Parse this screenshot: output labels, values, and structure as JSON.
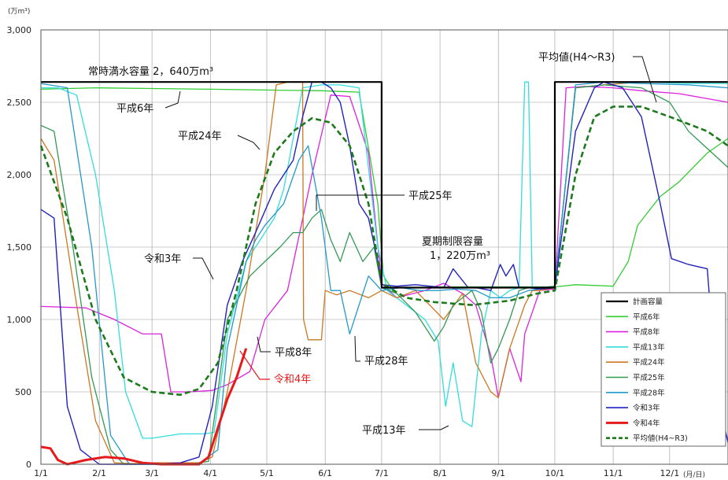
{
  "chart_data": {
    "type": "line",
    "y_unit": "(万m³)",
    "x_unit": "(月/日)",
    "ylim": [
      0,
      3000
    ],
    "y_ticks": [
      {
        "v": 0,
        "label": "0"
      },
      {
        "v": 500,
        "label": "500"
      },
      {
        "v": 1000,
        "label": "1,000"
      },
      {
        "v": 1500,
        "label": "1,500"
      },
      {
        "v": 2000,
        "label": "2,000"
      },
      {
        "v": 2500,
        "label": "2,500"
      },
      {
        "v": 3000,
        "label": "3,000"
      }
    ],
    "x_ticks": [
      {
        "v": 1,
        "label": "1/1"
      },
      {
        "v": 32,
        "label": "2/1"
      },
      {
        "v": 60,
        "label": "3/1"
      },
      {
        "v": 91,
        "label": "4/1"
      },
      {
        "v": 121,
        "label": "5/1"
      },
      {
        "v": 152,
        "label": "6/1"
      },
      {
        "v": 182,
        "label": "7/1"
      },
      {
        "v": 213,
        "label": "8/1"
      },
      {
        "v": 244,
        "label": "9/1"
      },
      {
        "v": 274,
        "label": "10/1"
      },
      {
        "v": 305,
        "label": "11/1"
      },
      {
        "v": 335,
        "label": "12/1"
      }
    ],
    "xlim": [
      1,
      366
    ],
    "grid": true,
    "legend_position": "bottom-right",
    "series": [
      {
        "name": "計画容量",
        "color": "#000000",
        "width": 2.2,
        "dash": "",
        "x": [
          1,
          182,
          182,
          274,
          274,
          366
        ],
        "y": [
          2640,
          2640,
          1220,
          1220,
          2640,
          2640
        ]
      },
      {
        "name": "平成6年",
        "color": "#33cc33",
        "width": 1.3,
        "dash": "",
        "x": [
          1,
          30,
          60,
          91,
          120,
          150,
          170,
          180,
          183,
          187,
          195,
          215,
          240,
          265,
          274,
          285,
          305,
          313,
          318,
          330,
          340,
          355,
          366
        ],
        "y": [
          2590,
          2600,
          2595,
          2590,
          2585,
          2580,
          2570,
          1800,
          1300,
          1220,
          1220,
          1225,
          1225,
          1225,
          1225,
          1240,
          1230,
          1400,
          1650,
          1850,
          1950,
          2150,
          2250
        ]
      },
      {
        "name": "平成8年",
        "color": "#dd22dd",
        "width": 1.3,
        "dash": "",
        "x": [
          1,
          25,
          40,
          55,
          65,
          70,
          80,
          92,
          100,
          112,
          120,
          132,
          145,
          155,
          165,
          175,
          182,
          190,
          205,
          215,
          225,
          232,
          240,
          244,
          250,
          256,
          258,
          262,
          266,
          274,
          280,
          290,
          305,
          320,
          340,
          366
        ],
        "y": [
          1090,
          1080,
          1000,
          900,
          900,
          500,
          500,
          510,
          550,
          640,
          1000,
          1200,
          2000,
          2550,
          2540,
          2150,
          1250,
          1150,
          1200,
          1250,
          1180,
          1100,
          750,
          460,
          800,
          570,
          900,
          1050,
          1200,
          1210,
          2600,
          2610,
          2600,
          2580,
          2560,
          2500
        ]
      },
      {
        "name": "平成13年",
        "color": "#33dddd",
        "width": 1.3,
        "dash": "",
        "x": [
          1,
          10,
          20,
          30,
          40,
          46,
          55,
          60,
          75,
          82,
          88,
          93,
          100,
          110,
          125,
          130,
          140,
          150,
          160,
          170,
          180,
          185,
          195,
          205,
          212,
          216,
          220,
          225,
          230,
          235,
          240,
          245,
          250,
          255,
          258,
          260,
          262,
          264,
          266,
          270,
          274,
          285,
          300,
          320,
          345,
          366
        ],
        "y": [
          2600,
          2600,
          2550,
          2000,
          1200,
          500,
          180,
          180,
          210,
          210,
          210,
          220,
          900,
          1400,
          1700,
          1900,
          2600,
          2620,
          2620,
          2600,
          1500,
          1200,
          1100,
          1000,
          850,
          400,
          700,
          300,
          260,
          900,
          1200,
          1150,
          1200,
          1220,
          2640,
          2640,
          1220,
          1220,
          1220,
          1220,
          1230,
          2600,
          2620,
          2640,
          2630,
          2630
        ]
      },
      {
        "name": "平成24年",
        "color": "#cc7722",
        "width": 1.3,
        "dash": "",
        "x": [
          1,
          8,
          20,
          30,
          40,
          50,
          60,
          75,
          85,
          92,
          100,
          110,
          120,
          126,
          132,
          140,
          140.5,
          143,
          150,
          152,
          158,
          165,
          175,
          182,
          190,
          200,
          215,
          225,
          232,
          240,
          244,
          250,
          258,
          262,
          266,
          270,
          274,
          285,
          300,
          320,
          345,
          366
        ],
        "y": [
          2250,
          2100,
          1100,
          300,
          10,
          5,
          10,
          10,
          10,
          50,
          500,
          1200,
          2000,
          2620,
          2640,
          2640,
          1000,
          860,
          860,
          1200,
          1170,
          1200,
          1150,
          1200,
          1150,
          1200,
          1000,
          1180,
          700,
          500,
          460,
          800,
          1100,
          1200,
          1200,
          1210,
          1220,
          2600,
          2620,
          2640,
          2640,
          2640
        ]
      },
      {
        "name": "平成25年",
        "color": "#339955",
        "width": 1.3,
        "dash": "",
        "x": [
          1,
          8,
          18,
          28,
          38,
          45,
          55,
          65,
          80,
          90,
          95,
          100,
          112,
          120,
          128,
          135,
          140,
          145,
          150,
          155,
          160,
          165,
          172,
          178,
          182,
          190,
          200,
          210,
          215,
          220,
          225,
          230,
          235,
          240,
          244,
          250,
          255,
          260,
          266,
          274,
          285,
          300,
          320,
          335,
          345,
          366
        ],
        "y": [
          2340,
          2300,
          1500,
          600,
          100,
          0,
          0,
          0,
          0,
          20,
          500,
          1000,
          1300,
          1400,
          1500,
          1600,
          1600,
          1700,
          1760,
          1550,
          1400,
          1600,
          1400,
          1500,
          1220,
          1180,
          1050,
          850,
          950,
          1100,
          1150,
          1200,
          1050,
          700,
          800,
          1000,
          1200,
          1220,
          1220,
          1230,
          2600,
          2620,
          2600,
          2500,
          2300,
          2050
        ]
      },
      {
        "name": "平成28年",
        "color": "#2299cc",
        "width": 1.3,
        "dash": "",
        "x": [
          1,
          15,
          28,
          38,
          48,
          58,
          70,
          85,
          95,
          100,
          110,
          115,
          120,
          130,
          138,
          143,
          150,
          155,
          160,
          165,
          170,
          175,
          182,
          192,
          202,
          212,
          222,
          232,
          240,
          250,
          260,
          266,
          274,
          285,
          300,
          320,
          345,
          366
        ],
        "y": [
          2630,
          2600,
          1500,
          200,
          0,
          0,
          0,
          5,
          100,
          800,
          1400,
          1550,
          1650,
          1800,
          2100,
          2200,
          1700,
          1200,
          1200,
          900,
          1100,
          1300,
          1200,
          1220,
          1200,
          1200,
          1210,
          1200,
          1150,
          1150,
          1200,
          1210,
          1220,
          2620,
          2640,
          2630,
          2620,
          2600
        ]
      },
      {
        "name": "令和3年",
        "color": "#2222bb",
        "width": 1.4,
        "dash": "",
        "x": [
          1,
          8,
          15,
          22,
          32,
          60,
          75,
          85,
          92,
          100,
          108,
          115,
          125,
          135,
          140,
          145,
          150,
          155,
          160,
          165,
          170,
          175,
          180,
          182,
          190,
          200,
          215,
          220,
          228,
          232,
          240,
          245,
          248,
          252,
          255,
          260,
          266,
          274,
          285,
          295,
          300,
          310,
          320,
          330,
          336,
          345,
          355,
          360,
          366
        ],
        "y": [
          1760,
          1700,
          400,
          100,
          0,
          0,
          10,
          50,
          400,
          1100,
          1400,
          1600,
          1900,
          2100,
          2400,
          2640,
          2640,
          2600,
          2500,
          2200,
          1800,
          1700,
          1400,
          1240,
          1230,
          1240,
          1220,
          1350,
          1220,
          1220,
          1200,
          1380,
          1300,
          1380,
          1220,
          1220,
          1210,
          1220,
          2300,
          2600,
          2640,
          2600,
          2400,
          1800,
          1420,
          1380,
          1350,
          500,
          150
        ]
      },
      {
        "name": "令和4年",
        "color": "#e8191a",
        "width": 3.0,
        "dash": "",
        "x": [
          1,
          6,
          10,
          15,
          25,
          35,
          45,
          55,
          65,
          75,
          85,
          90,
          95,
          100,
          105,
          110
        ],
        "y": [
          120,
          110,
          30,
          0,
          30,
          50,
          40,
          10,
          0,
          0,
          0,
          50,
          250,
          450,
          600,
          800
        ]
      },
      {
        "name": "平均値(H4~R3)",
        "color": "#1c7a1c",
        "width": 2.6,
        "dash": "7,4",
        "x": [
          1,
          15,
          30,
          45,
          60,
          75,
          85,
          95,
          105,
          115,
          125,
          135,
          145,
          155,
          165,
          175,
          182,
          195,
          210,
          230,
          250,
          265,
          274,
          285,
          295,
          305,
          320,
          335,
          345,
          355,
          366
        ],
        "y": [
          2200,
          1700,
          1000,
          600,
          500,
          480,
          520,
          700,
          1200,
          1800,
          2150,
          2300,
          2390,
          2360,
          2200,
          1800,
          1250,
          1150,
          1120,
          1100,
          1130,
          1180,
          1200,
          2000,
          2400,
          2470,
          2470,
          2400,
          2350,
          2300,
          2200
        ]
      }
    ],
    "annotations": [
      {
        "text": "常時満水容量 2，640万m³",
        "color": "#111111"
      },
      {
        "text": "平成6年",
        "color": "#111111"
      },
      {
        "text": "平成24年",
        "color": "#111111"
      },
      {
        "text": "平成25年",
        "color": "#111111"
      },
      {
        "text": "令和3年",
        "color": "#111111"
      },
      {
        "text": "平成8年",
        "color": "#111111"
      },
      {
        "text": "令和4年",
        "color": "#e8191a"
      },
      {
        "text": "平成28年",
        "color": "#111111"
      },
      {
        "text": "平成13年",
        "color": "#111111"
      },
      {
        "text": "夏期制限容量",
        "color": "#111111"
      },
      {
        "text": "1，220万m³",
        "color": "#111111"
      },
      {
        "text": "平均値(H4～R3)",
        "color": "#111111"
      }
    ]
  }
}
